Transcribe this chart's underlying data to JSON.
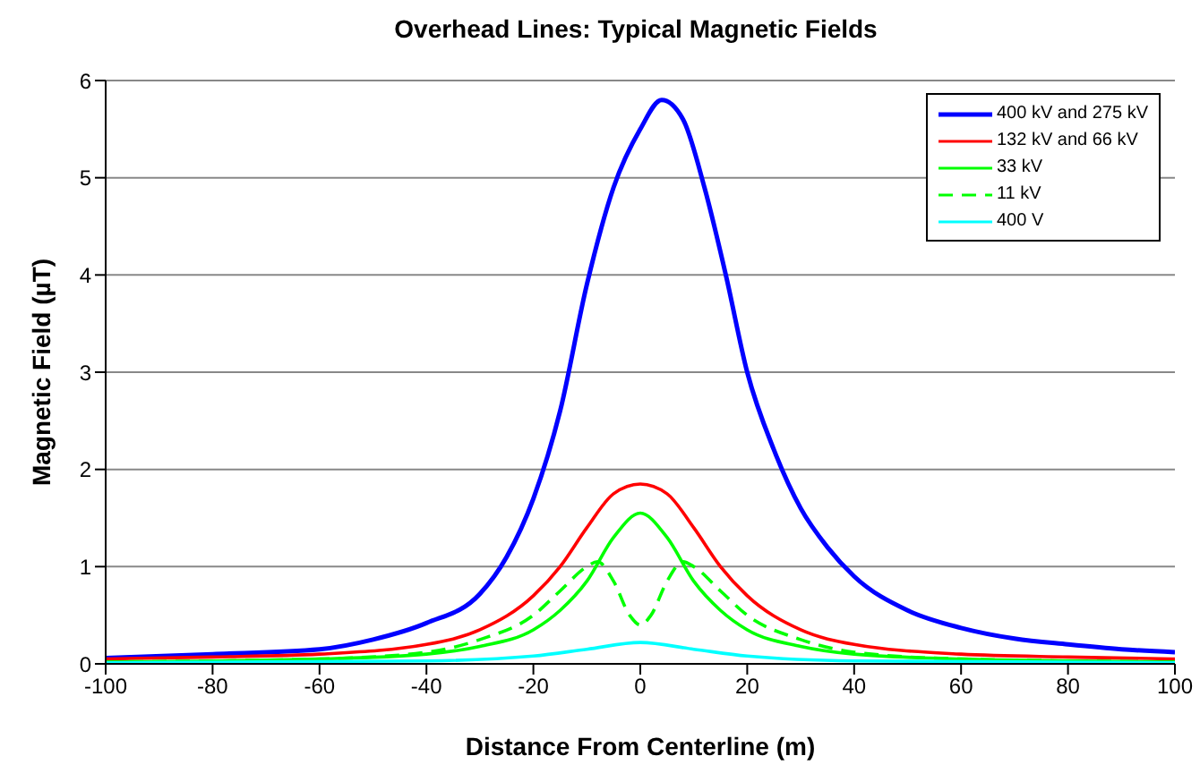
{
  "chart_data": {
    "type": "line",
    "title": "Overhead Lines: Typical Magnetic Fields",
    "xlabel": "Distance From Centerline (m)",
    "ylabel": "Magnetic Field (µT)",
    "xlim": [
      -100,
      100
    ],
    "xticks": [
      -100,
      -80,
      -60,
      -40,
      -20,
      0,
      20,
      40,
      60,
      80,
      100
    ],
    "ylim": [
      0,
      6
    ],
    "yticks": [
      0,
      1,
      2,
      3,
      4,
      5,
      6
    ],
    "grid": "y",
    "legend": "top right",
    "marker": "none",
    "series": [
      {
        "name": "400 kV and 275 kV",
        "color": "#0000ff",
        "x": [
          -100,
          -80,
          -60,
          -50,
          -40,
          -30,
          -25,
          -20,
          -15,
          -10,
          -5,
          0,
          4,
          8,
          12,
          16,
          20,
          25,
          30,
          35,
          40,
          50,
          60,
          70,
          80,
          90,
          100
        ],
        "values": [
          0.06,
          0.1,
          0.15,
          0.25,
          0.42,
          0.72,
          1.1,
          1.7,
          2.6,
          3.9,
          4.9,
          5.5,
          5.8,
          5.6,
          4.9,
          4.0,
          3.0,
          2.2,
          1.6,
          1.2,
          0.9,
          0.55,
          0.37,
          0.26,
          0.2,
          0.15,
          0.12
        ]
      },
      {
        "name": "132 kV and 66 kV",
        "color": "#ff0000",
        "x": [
          -100,
          -80,
          -60,
          -40,
          -30,
          -20,
          -15,
          -10,
          -5,
          0,
          5,
          10,
          15,
          20,
          30,
          40,
          60,
          80,
          100
        ],
        "values": [
          0.05,
          0.07,
          0.1,
          0.2,
          0.35,
          0.7,
          1.0,
          1.4,
          1.75,
          1.85,
          1.75,
          1.4,
          1.0,
          0.7,
          0.35,
          0.2,
          0.1,
          0.07,
          0.05
        ]
      },
      {
        "name": "33 kV",
        "color": "#00ff00",
        "x": [
          -100,
          -60,
          -40,
          -30,
          -20,
          -15,
          -10,
          -5,
          0,
          5,
          10,
          15,
          20,
          30,
          40,
          60,
          100
        ],
        "values": [
          0.02,
          0.05,
          0.1,
          0.18,
          0.35,
          0.55,
          0.85,
          1.3,
          1.55,
          1.3,
          0.85,
          0.55,
          0.35,
          0.18,
          0.1,
          0.05,
          0.02
        ]
      },
      {
        "name": "11 kV",
        "color": "#00ff00",
        "line_style": "dashed",
        "x": [
          -100,
          -60,
          -40,
          -30,
          -20,
          -15,
          -10,
          -8,
          -5,
          -2,
          0,
          2,
          5,
          8,
          10,
          15,
          20,
          30,
          40,
          60,
          100
        ],
        "values": [
          0.02,
          0.05,
          0.12,
          0.25,
          0.5,
          0.75,
          1.0,
          1.05,
          0.85,
          0.5,
          0.4,
          0.5,
          0.85,
          1.05,
          1.0,
          0.75,
          0.5,
          0.25,
          0.12,
          0.05,
          0.02
        ]
      },
      {
        "name": "400 V",
        "color": "#00ffff",
        "x": [
          -100,
          -40,
          -20,
          -10,
          0,
          10,
          20,
          40,
          100
        ],
        "values": [
          0.01,
          0.03,
          0.08,
          0.15,
          0.22,
          0.15,
          0.08,
          0.03,
          0.01
        ]
      }
    ]
  }
}
